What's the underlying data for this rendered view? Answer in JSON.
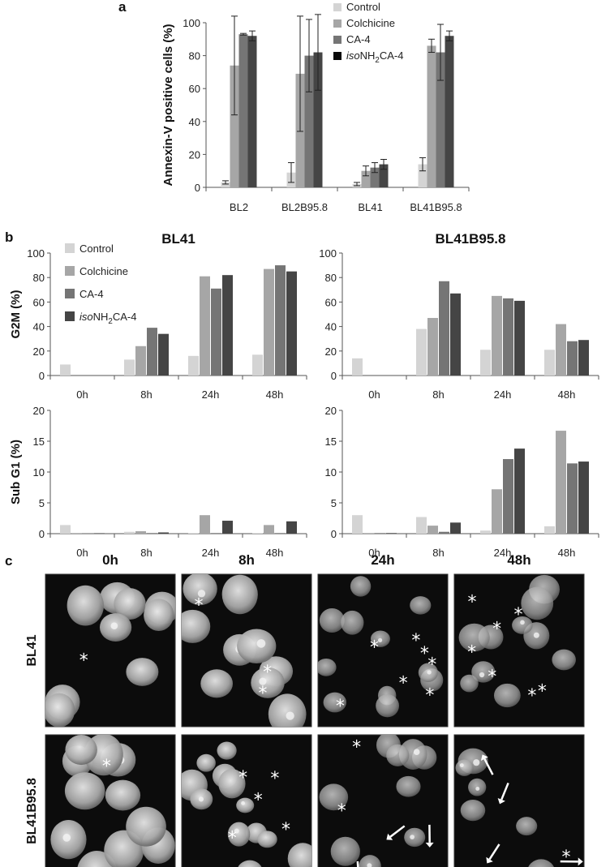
{
  "panel_letters": {
    "a": "a",
    "b": "b",
    "c": "c"
  },
  "colors": {
    "Control": "#d4d4d4",
    "Colchicine": "#a6a6a6",
    "CA-4": "#757575",
    "isoNH2CA-4": "#454545",
    "isoNH2CA-4_a": "#0a0a0a"
  },
  "legend_a": [
    {
      "key": "Control",
      "label": "Control"
    },
    {
      "key": "Colchicine",
      "label": "Colchicine"
    },
    {
      "key": "CA-4",
      "label": "CA-4"
    },
    {
      "key": "isoNH2CA-4_a",
      "label_iso": "iso",
      "label_main": "NH",
      "label_sub": "2",
      "label_tail": "CA-4"
    }
  ],
  "legend_b": [
    {
      "key": "Control",
      "label": "Control"
    },
    {
      "key": "Colchicine",
      "label": "Colchicine"
    },
    {
      "key": "CA-4",
      "label": "CA-4"
    },
    {
      "key": "isoNH2CA-4",
      "label_iso": "iso",
      "label_main": "NH",
      "label_sub": "2",
      "label_tail": "CA-4"
    }
  ],
  "chart_data": [
    {
      "id": "a",
      "type": "bar",
      "title": "",
      "ylabel": "Annexin-V positive cells (%)",
      "ylim": [
        0,
        100
      ],
      "yticks": [
        0,
        20,
        40,
        60,
        80,
        100
      ],
      "categories": [
        "BL2",
        "BL2B95.8",
        "BL41",
        "BL41B95.8"
      ],
      "series": [
        {
          "name": "Control",
          "values": [
            3,
            9,
            2,
            14
          ],
          "err": [
            1,
            6,
            1,
            4
          ]
        },
        {
          "name": "Colchicine",
          "values": [
            74,
            69,
            10,
            86
          ],
          "err": [
            30,
            35,
            3,
            4
          ]
        },
        {
          "name": "CA-4",
          "values": [
            93,
            80,
            12,
            82
          ],
          "err": [
            0.5,
            22,
            3,
            17
          ]
        },
        {
          "name": "isoNH2CA-4",
          "values": [
            92,
            82,
            14,
            92
          ],
          "err": [
            3,
            23,
            3,
            3
          ]
        }
      ]
    },
    {
      "id": "b1",
      "type": "bar",
      "title": "BL41",
      "ylabel": "G2M (%)",
      "ylim": [
        0,
        100
      ],
      "yticks": [
        0,
        20,
        40,
        60,
        80,
        100
      ],
      "categories": [
        "0h",
        "8h",
        "24h",
        "48h"
      ],
      "series": [
        {
          "name": "Control",
          "values": [
            9,
            13,
            16,
            17
          ]
        },
        {
          "name": "Colchicine",
          "values": [
            null,
            24,
            81,
            87
          ]
        },
        {
          "name": "CA-4",
          "values": [
            null,
            39,
            71,
            90
          ]
        },
        {
          "name": "isoNH2CA-4",
          "values": [
            null,
            34,
            82,
            85
          ]
        }
      ]
    },
    {
      "id": "b2",
      "type": "bar",
      "title": "BL41B95.8",
      "ylabel": "",
      "ylim": [
        0,
        100
      ],
      "yticks": [
        0,
        20,
        40,
        60,
        80,
        100
      ],
      "categories": [
        "0h",
        "8h",
        "24h",
        "48h"
      ],
      "series": [
        {
          "name": "Control",
          "values": [
            14,
            38,
            21,
            21
          ]
        },
        {
          "name": "Colchicine",
          "values": [
            null,
            47,
            65,
            42
          ]
        },
        {
          "name": "CA-4",
          "values": [
            null,
            77,
            63,
            28
          ]
        },
        {
          "name": "isoNH2CA-4",
          "values": [
            null,
            67,
            61,
            29
          ]
        }
      ]
    },
    {
      "id": "b3",
      "type": "bar",
      "title": "",
      "ylabel": "Sub G1  (%)",
      "ylim": [
        0,
        20
      ],
      "yticks": [
        0,
        5,
        10,
        15,
        20
      ],
      "categories": [
        "0h",
        "8h",
        "24h",
        "48h"
      ],
      "series": [
        {
          "name": "Control",
          "values": [
            1.4,
            0.3,
            0.1,
            0.1
          ]
        },
        {
          "name": "Colchicine",
          "values": [
            0.1,
            0.4,
            3.0,
            1.4
          ]
        },
        {
          "name": "CA-4",
          "values": [
            0.05,
            0.1,
            0.1,
            0.1
          ]
        },
        {
          "name": "isoNH2CA-4",
          "values": [
            0.05,
            0.2,
            2.1,
            2.0
          ]
        }
      ]
    },
    {
      "id": "b4",
      "type": "bar",
      "title": "",
      "ylabel": "",
      "ylim": [
        0,
        20
      ],
      "yticks": [
        0,
        5,
        10,
        15,
        20
      ],
      "categories": [
        "0h",
        "8h",
        "24h",
        "48h"
      ],
      "series": [
        {
          "name": "Control",
          "values": [
            3.0,
            2.7,
            0.5,
            1.2
          ]
        },
        {
          "name": "Colchicine",
          "values": [
            0.1,
            1.3,
            7.2,
            16.7
          ]
        },
        {
          "name": "CA-4",
          "values": [
            0.1,
            0.3,
            12.1,
            11.4
          ]
        },
        {
          "name": "isoNH2CA-4",
          "values": [
            0.1,
            1.8,
            13.8,
            11.7
          ]
        }
      ]
    }
  ],
  "micrographs": {
    "col_labels": [
      "0h",
      "8h",
      "24h",
      "48h"
    ],
    "row_labels": [
      "BL41",
      "BL41B95.8"
    ]
  }
}
